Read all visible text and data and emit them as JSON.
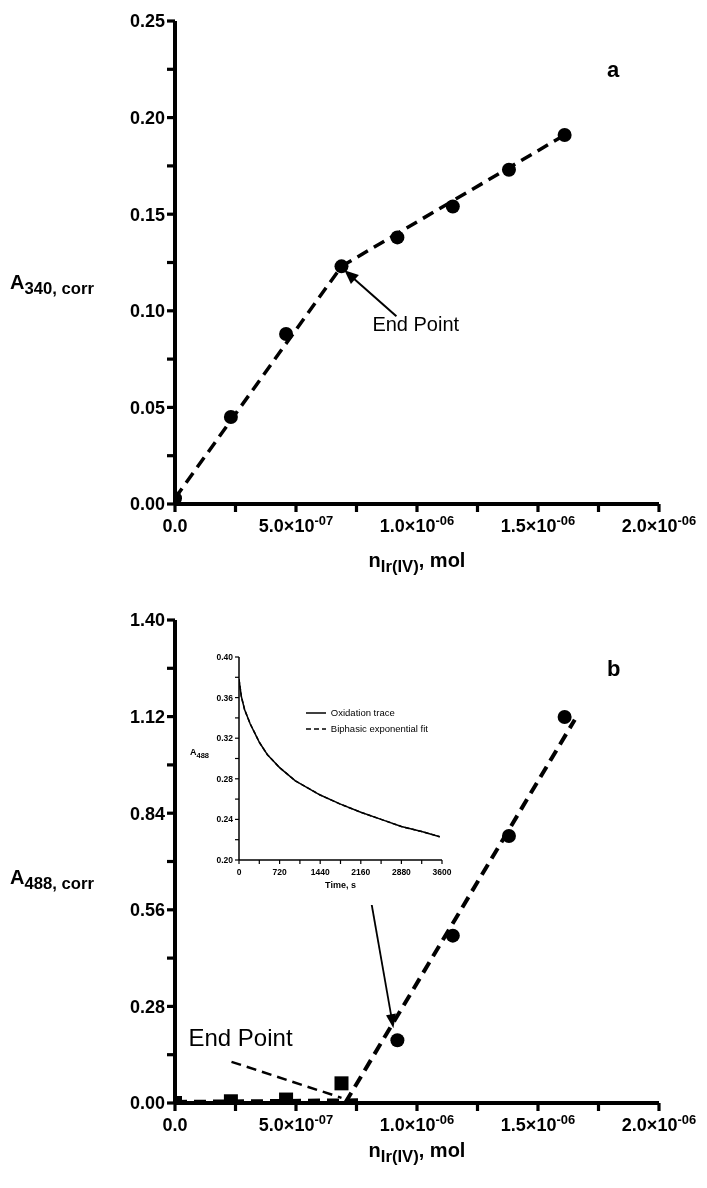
{
  "chart_data": [
    {
      "type": "scatter",
      "title": "a",
      "xlabel": "n$_{Ir(IV)}$, mol",
      "ylabel": "A$_{340, corr}$",
      "xlim": [
        0,
        2e-06
      ],
      "xticks": [
        {
          "value": 0,
          "label": "0.0"
        },
        {
          "value": 2.5e-07,
          "label": null
        },
        {
          "value": 5e-07,
          "label": "5.0×10$^{-07}$"
        },
        {
          "value": 7.5e-07,
          "label": null
        },
        {
          "value": 1e-06,
          "label": "1.0×10$^{-06}$"
        },
        {
          "value": 1.25e-06,
          "label": null
        },
        {
          "value": 1.5e-06,
          "label": "1.5×10$^{-06}$"
        },
        {
          "value": 1.75e-06,
          "label": null
        },
        {
          "value": 2e-06,
          "label": "2.0×10$^{-06}$"
        }
      ],
      "ylim": [
        0,
        0.25
      ],
      "yticks": [
        {
          "value": 0,
          "label": "0.00"
        },
        {
          "value": 0.025,
          "label": null
        },
        {
          "value": 0.05,
          "label": "0.05"
        },
        {
          "value": 0.075,
          "label": null
        },
        {
          "value": 0.1,
          "label": "0.10"
        },
        {
          "value": 0.125,
          "label": null
        },
        {
          "value": 0.15,
          "label": "0.15"
        },
        {
          "value": 0.175,
          "label": null
        },
        {
          "value": 0.2,
          "label": "0.20"
        },
        {
          "value": 0.225,
          "label": null
        },
        {
          "value": 0.25,
          "label": "0.25"
        }
      ],
      "annotations": [
        {
          "text": "End Point",
          "x": 7e-07,
          "y": 0.121
        }
      ],
      "series": [
        {
          "type": "scatter",
          "marker": "circle",
          "color": "#000000",
          "x": [
            0,
            2.31e-07,
            4.59e-07,
            6.88e-07,
            9.19e-07,
            1.148e-06,
            1.38e-06,
            1.61e-06
          ],
          "values": [
            0.003,
            0.045,
            0.088,
            0.123,
            0.138,
            0.154,
            0.173,
            0.191
          ]
        },
        {
          "type": "line",
          "line_style": "dashed",
          "color": "#000000",
          "x": [
            0,
            6.88e-07,
            1.61e-06
          ],
          "values": [
            0.003,
            0.123,
            0.191
          ]
        }
      ]
    },
    {
      "type": "scatter",
      "title": "b",
      "xlabel": "n$_{Ir(IV)}$, mol",
      "ylabel": "A$_{488, corr}$",
      "xlim": [
        0,
        2e-06
      ],
      "xticks": [
        {
          "value": 0,
          "label": "0.0"
        },
        {
          "value": 2.5e-07,
          "label": null
        },
        {
          "value": 5e-07,
          "label": "5.0×10$^{-07}$"
        },
        {
          "value": 7.5e-07,
          "label": null
        },
        {
          "value": 1e-06,
          "label": "1.0×10$^{-06}$"
        },
        {
          "value": 1.25e-06,
          "label": null
        },
        {
          "value": 1.5e-06,
          "label": "1.5×10$^{-06}$"
        },
        {
          "value": 1.75e-06,
          "label": null
        },
        {
          "value": 2e-06,
          "label": "2.0×10$^{-06}$"
        }
      ],
      "ylim": [
        0,
        1.4
      ],
      "yticks": [
        {
          "value": 0,
          "label": "0.00"
        },
        {
          "value": 0.14,
          "label": null
        },
        {
          "value": 0.28,
          "label": "0.28"
        },
        {
          "value": 0.42,
          "label": null
        },
        {
          "value": 0.56,
          "label": "0.56"
        },
        {
          "value": 0.7,
          "label": null
        },
        {
          "value": 0.84,
          "label": "0.84"
        },
        {
          "value": 0.98,
          "label": null
        },
        {
          "value": 1.12,
          "label": "1.12"
        },
        {
          "value": 1.26,
          "label": null
        },
        {
          "value": 1.4,
          "label": "1.40"
        }
      ],
      "annotations": [
        {
          "text": "End Point",
          "x": 6.88e-07,
          "y": 0.015
        }
      ],
      "series": [
        {
          "type": "scatter",
          "marker": "square",
          "color": "#000000",
          "x": [
            0,
            2.31e-07,
            4.59e-07,
            6.88e-07
          ],
          "values": [
            0.0,
            0.005,
            0.01,
            0.057
          ]
        },
        {
          "type": "scatter",
          "marker": "circle",
          "color": "#000000",
          "x": [
            9.19e-07,
            1.148e-06,
            1.38e-06,
            1.61e-06
          ],
          "values": [
            0.182,
            0.485,
            0.774,
            1.119
          ]
        },
        {
          "type": "line",
          "line_style": "dashed",
          "color": "#000000",
          "x": [
            0,
            7.7e-07
          ],
          "values": [
            0.003,
            0.008
          ]
        },
        {
          "type": "line",
          "line_style": "dashed",
          "color": "#000000",
          "x": [
            7.03e-07,
            1.652e-06
          ],
          "values": [
            0.0,
            1.111
          ]
        }
      ]
    },
    {
      "type": "line",
      "xlabel": "Time, s",
      "ylabel": "A$_{488}$",
      "legend": "top right",
      "xlim": [
        0,
        3600
      ],
      "xticks": [
        0,
        {
          "value": 360,
          "label": null
        },
        720,
        {
          "value": 1080,
          "label": null
        },
        1440,
        {
          "value": 1800,
          "label": null
        },
        2160,
        {
          "value": 2520,
          "label": null
        },
        2880,
        {
          "value": 3240,
          "label": null
        },
        3600
      ],
      "ylim": [
        0.2,
        0.4
      ],
      "yticks": [
        {
          "value": 0.2,
          "label": "0.20"
        },
        {
          "value": 0.22,
          "label": null
        },
        {
          "value": 0.24,
          "label": "0.24"
        },
        {
          "value": 0.26,
          "label": null
        },
        {
          "value": 0.28,
          "label": "0.28"
        },
        {
          "value": 0.3,
          "label": null
        },
        {
          "value": 0.32,
          "label": "0.32"
        },
        {
          "value": 0.34,
          "label": null
        },
        {
          "value": 0.36,
          "label": "0.36"
        },
        {
          "value": 0.38,
          "label": null
        },
        {
          "value": 0.4,
          "label": "0.40"
        }
      ],
      "series": [
        {
          "name": "Oxidation trace",
          "line_style": "solid",
          "color": "#000000",
          "x": [
            0,
            42,
            100,
            200,
            360,
            500,
            720,
            1000,
            1440,
            1800,
            2160,
            2520,
            2880,
            3240,
            3560
          ],
          "values": [
            0.378,
            0.361,
            0.348,
            0.334,
            0.316,
            0.304,
            0.291,
            0.278,
            0.264,
            0.255,
            0.247,
            0.24,
            0.233,
            0.228,
            0.223
          ]
        },
        {
          "name": "Biphasic exponential fit",
          "line_style": "dashed",
          "color": "#000000",
          "x": [
            0,
            42,
            100,
            200,
            360,
            500,
            720,
            1000,
            1440,
            1800,
            2160,
            2520,
            2880,
            3240,
            3560
          ],
          "values": [
            0.378,
            0.361,
            0.348,
            0.334,
            0.316,
            0.304,
            0.291,
            0.278,
            0.264,
            0.255,
            0.247,
            0.24,
            0.233,
            0.228,
            0.223
          ]
        }
      ]
    }
  ]
}
